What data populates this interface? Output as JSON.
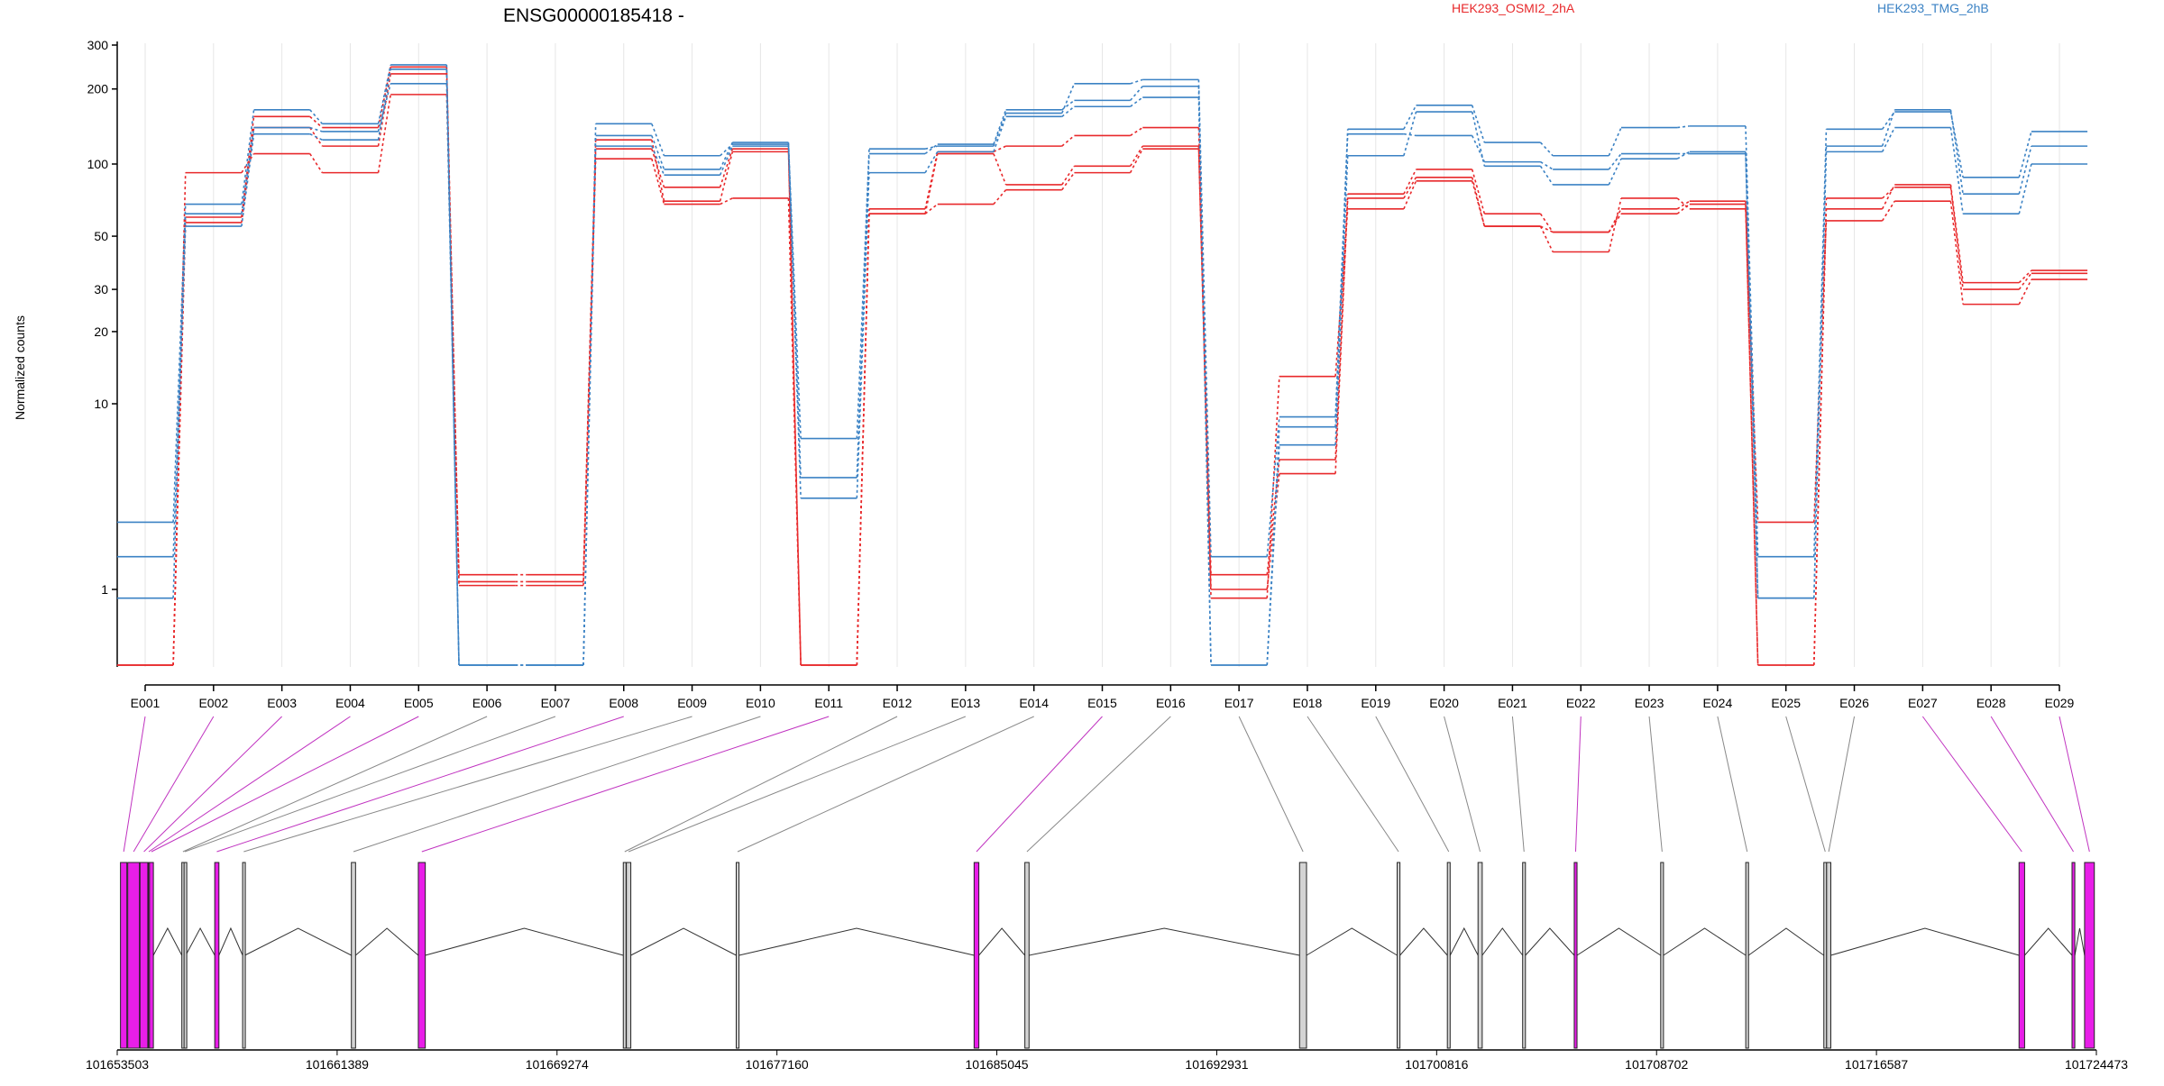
{
  "chart_data": {
    "type": "line",
    "title": "ENSG00000185418 -",
    "ylabel": "Normalized counts",
    "yscale": "log",
    "yticks": [
      1,
      10,
      20,
      30,
      50,
      100,
      200,
      300
    ],
    "ylim": [
      0.4,
      310
    ],
    "categories": [
      "E001",
      "E002",
      "E003",
      "E004",
      "E005",
      "E006",
      "E007",
      "E008",
      "E009",
      "E010",
      "E011",
      "E012",
      "E013",
      "E014",
      "E015",
      "E016",
      "E017",
      "E018",
      "E019",
      "E020",
      "E021",
      "E022",
      "E023",
      "E024",
      "E025",
      "E026",
      "E027",
      "E028",
      "E029"
    ],
    "zero_floor_value": 0.4,
    "legend": [
      {
        "name": "HEK293_OSMI2_2hA",
        "color": "#e8292b"
      },
      {
        "name": "HEK293_TMG_2hB",
        "color": "#3b82c4"
      }
    ],
    "series": [
      {
        "group": "HEK293_OSMI2_2hA",
        "color": "#e8292b",
        "values": [
          0.4,
          57,
          140,
          118,
          230,
          1.2,
          1.2,
          125,
          70,
          112,
          0.4,
          65,
          112,
          118,
          130,
          140,
          1.2,
          5,
          75,
          95,
          62,
          52,
          62,
          68,
          0.4,
          65,
          82,
          32,
          36
        ]
      },
      {
        "group": "HEK293_OSMI2_2hA",
        "color": "#e8292b",
        "values": [
          0.4,
          60,
          155,
          140,
          245,
          1.1,
          1.1,
          115,
          80,
          115,
          0.4,
          62,
          110,
          82,
          98,
          118,
          1.0,
          4.2,
          72,
          88,
          55,
          52,
          65,
          70,
          0.4,
          72,
          80,
          30,
          35
        ]
      },
      {
        "group": "HEK293_OSMI2_2hA",
        "color": "#e8292b",
        "values": [
          0.4,
          92,
          110,
          92,
          190,
          1.05,
          1.05,
          105,
          68,
          72,
          0.4,
          62,
          68,
          78,
          92,
          115,
          0.9,
          13,
          65,
          85,
          55,
          43,
          72,
          65,
          2.3,
          58,
          70,
          26,
          33
        ]
      },
      {
        "group": "HEK293_TMG_2hB",
        "color": "#3b82c4",
        "values": [
          2.3,
          68,
          165,
          145,
          250,
          0.4,
          0.4,
          145,
          108,
          120,
          6.5,
          115,
          118,
          160,
          210,
          218,
          1.5,
          8.5,
          138,
          172,
          122,
          108,
          140,
          142,
          1.5,
          138,
          162,
          88,
          135
        ]
      },
      {
        "group": "HEK293_TMG_2hB",
        "color": "#3b82c4",
        "values": [
          0.9,
          62,
          140,
          135,
          210,
          0.4,
          0.4,
          130,
          95,
          122,
          4,
          110,
          120,
          165,
          180,
          205,
          0.4,
          7.5,
          132,
          130,
          102,
          95,
          110,
          110,
          0.9,
          118,
          165,
          75,
          118
        ]
      },
      {
        "group": "HEK293_TMG_2hB",
        "color": "#3b82c4",
        "values": [
          1.5,
          55,
          132,
          125,
          240,
          0.4,
          0.4,
          118,
          90,
          118,
          3.1,
          92,
          112,
          155,
          170,
          185,
          0.4,
          6,
          108,
          162,
          98,
          82,
          105,
          112,
          0.9,
          112,
          140,
          62,
          100
        ]
      }
    ]
  },
  "gene_model": {
    "coord_ticks": [
      "101653503",
      "101661389",
      "101669274",
      "101677160",
      "101685045",
      "101692931",
      "101700816",
      "101708702",
      "101716587",
      "101724473"
    ],
    "exons": [
      {
        "id": "E001",
        "start": 101653620,
        "end": 101653850,
        "highlight": true
      },
      {
        "id": "E002",
        "start": 101653880,
        "end": 101654300,
        "highlight": true
      },
      {
        "id": "E003",
        "start": 101654320,
        "end": 101654600,
        "highlight": true
      },
      {
        "id": "E004",
        "start": 101654620,
        "end": 101654650,
        "highlight": true
      },
      {
        "id": "E005",
        "start": 101654660,
        "end": 101654800,
        "highlight": true
      },
      {
        "id": "E006",
        "start": 101655820,
        "end": 101655900,
        "highlight": false
      },
      {
        "id": "E007",
        "start": 101655900,
        "end": 101655960,
        "highlight": false
      },
      {
        "id": "E008",
        "start": 101657000,
        "end": 101657150,
        "highlight": true
      },
      {
        "id": "E009",
        "start": 101658000,
        "end": 101658080,
        "highlight": false
      },
      {
        "id": "E010",
        "start": 101661900,
        "end": 101662050,
        "highlight": false
      },
      {
        "id": "E011",
        "start": 101664300,
        "end": 101664550,
        "highlight": true
      },
      {
        "id": "E012",
        "start": 101671650,
        "end": 101671750,
        "highlight": false
      },
      {
        "id": "E013",
        "start": 101671760,
        "end": 101671920,
        "highlight": false
      },
      {
        "id": "E014",
        "start": 101675700,
        "end": 101675800,
        "highlight": false
      },
      {
        "id": "E015",
        "start": 101684230,
        "end": 101684400,
        "highlight": true
      },
      {
        "id": "E016",
        "start": 101686050,
        "end": 101686200,
        "highlight": false
      },
      {
        "id": "E017",
        "start": 101695900,
        "end": 101696150,
        "highlight": false
      },
      {
        "id": "E018",
        "start": 101699400,
        "end": 101699500,
        "highlight": false
      },
      {
        "id": "E019",
        "start": 101701200,
        "end": 101701300,
        "highlight": false
      },
      {
        "id": "E020",
        "start": 101702300,
        "end": 101702450,
        "highlight": false
      },
      {
        "id": "E021",
        "start": 101703900,
        "end": 101704000,
        "highlight": false
      },
      {
        "id": "E022",
        "start": 101705750,
        "end": 101705850,
        "highlight": true
      },
      {
        "id": "E023",
        "start": 101708850,
        "end": 101708950,
        "highlight": false
      },
      {
        "id": "E024",
        "start": 101711900,
        "end": 101712000,
        "highlight": false
      },
      {
        "id": "E025",
        "start": 101714700,
        "end": 101714800,
        "highlight": false
      },
      {
        "id": "E026",
        "start": 101714800,
        "end": 101714950,
        "highlight": false
      },
      {
        "id": "E027",
        "start": 101721700,
        "end": 101721900,
        "highlight": true
      },
      {
        "id": "E028",
        "start": 101723600,
        "end": 101723700,
        "highlight": true
      },
      {
        "id": "E029",
        "start": 101724050,
        "end": 101724400,
        "highlight": true
      }
    ]
  },
  "colors": {
    "axis": "#000000",
    "grid": "#e6e6e6",
    "exon_highlight": "#e81ee8",
    "exon_normal": "#d4d4d4",
    "connector_highlight": "#c033c0",
    "connector_normal": "#888888"
  }
}
